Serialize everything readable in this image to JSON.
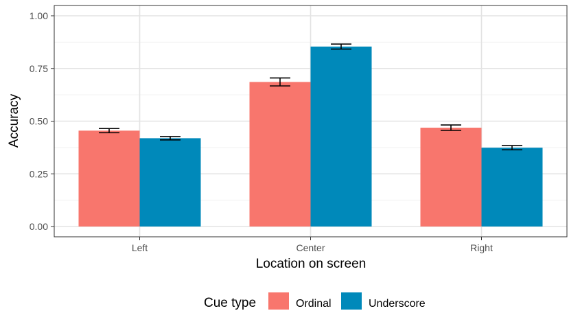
{
  "chart_data": {
    "type": "bar",
    "title": "",
    "xlabel": "Location on screen",
    "ylabel": "Accuracy",
    "categories": [
      "Left",
      "Center",
      "Right"
    ],
    "series": [
      {
        "name": "Ordinal",
        "color": "#F8766D",
        "values": [
          0.455,
          0.686,
          0.469
        ],
        "error_low": [
          0.445,
          0.667,
          0.456
        ],
        "error_high": [
          0.465,
          0.705,
          0.482
        ]
      },
      {
        "name": "Underscore",
        "color": "#0089BA",
        "values": [
          0.419,
          0.854,
          0.374
        ],
        "error_low": [
          0.411,
          0.842,
          0.364
        ],
        "error_high": [
          0.427,
          0.866,
          0.384
        ]
      }
    ],
    "ylim": [
      0,
      1.0
    ],
    "yticks": [
      0.0,
      0.25,
      0.5,
      0.75,
      1.0
    ],
    "ytick_labels": [
      "0.00",
      "0.25",
      "0.50",
      "0.75",
      "1.00"
    ],
    "grid": true,
    "legend": {
      "title": "Cue type",
      "position": "bottom"
    }
  }
}
